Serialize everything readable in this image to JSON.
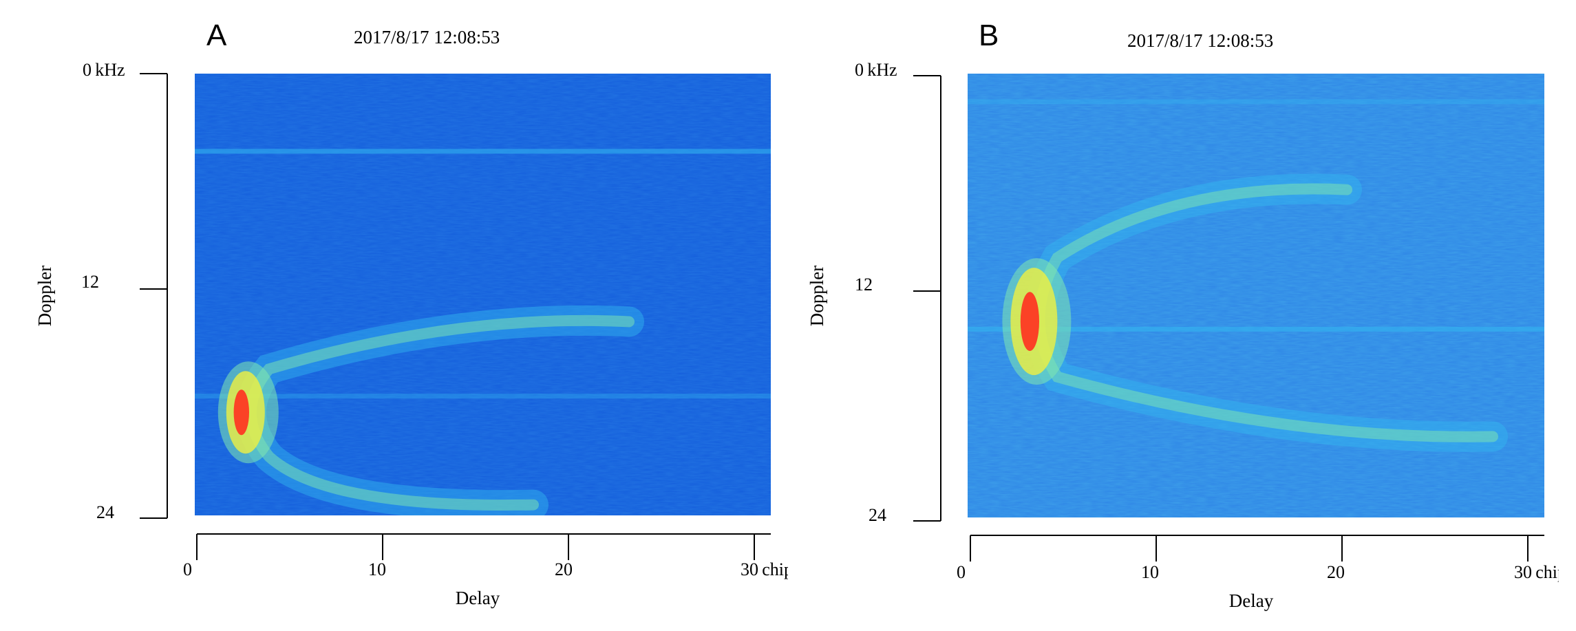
{
  "chart_data": [
    {
      "type": "heatmap",
      "panel_label": "A",
      "title": "2017/8/17 12:08:53",
      "xlabel": "Delay",
      "ylabel": "Doppler",
      "x_unit": "chip",
      "y_unit": "kHz",
      "xlim": [
        0,
        30
      ],
      "ylim": [
        0,
        24
      ],
      "x_ticks": [
        "0",
        "10",
        "20",
        "30"
      ],
      "y_ticks": [
        "0",
        "12",
        "24"
      ],
      "colormap": [
        "#0033cc",
        "#1f6fe6",
        "#33b8f0",
        "#7fe8b0",
        "#f0f040",
        "#ff3020"
      ],
      "features": {
        "peak": {
          "delay": 2.4,
          "doppler": 18.4
        },
        "arc_top": {
          "delay": 14,
          "doppler": 13.7
        },
        "arc_bottom": {
          "delay": 7,
          "doppler": 23.2
        },
        "horizontal_bands": [
          4.2,
          17.5
        ]
      }
    },
    {
      "type": "heatmap",
      "panel_label": "B",
      "title": "2017/8/17 12:08:53",
      "xlabel": "Delay",
      "ylabel": "Doppler",
      "x_unit": "chip",
      "y_unit": "kHz",
      "xlim": [
        0,
        30
      ],
      "ylim": [
        0,
        24
      ],
      "x_ticks": [
        "0",
        "10",
        "20",
        "30"
      ],
      "y_ticks": [
        "0",
        "12",
        "24"
      ],
      "colormap": [
        "#0033cc",
        "#1f6fe6",
        "#33b8f0",
        "#7fe8b0",
        "#f0f040",
        "#ff3020"
      ],
      "features": {
        "peak": {
          "delay": 3.2,
          "doppler": 13.4
        },
        "arc_top": {
          "delay": 11,
          "doppler": 6.5
        },
        "arc_bottom": {
          "delay": 17,
          "doppler": 19.4
        },
        "horizontal_bands": [
          13.8,
          1.5
        ]
      }
    }
  ]
}
